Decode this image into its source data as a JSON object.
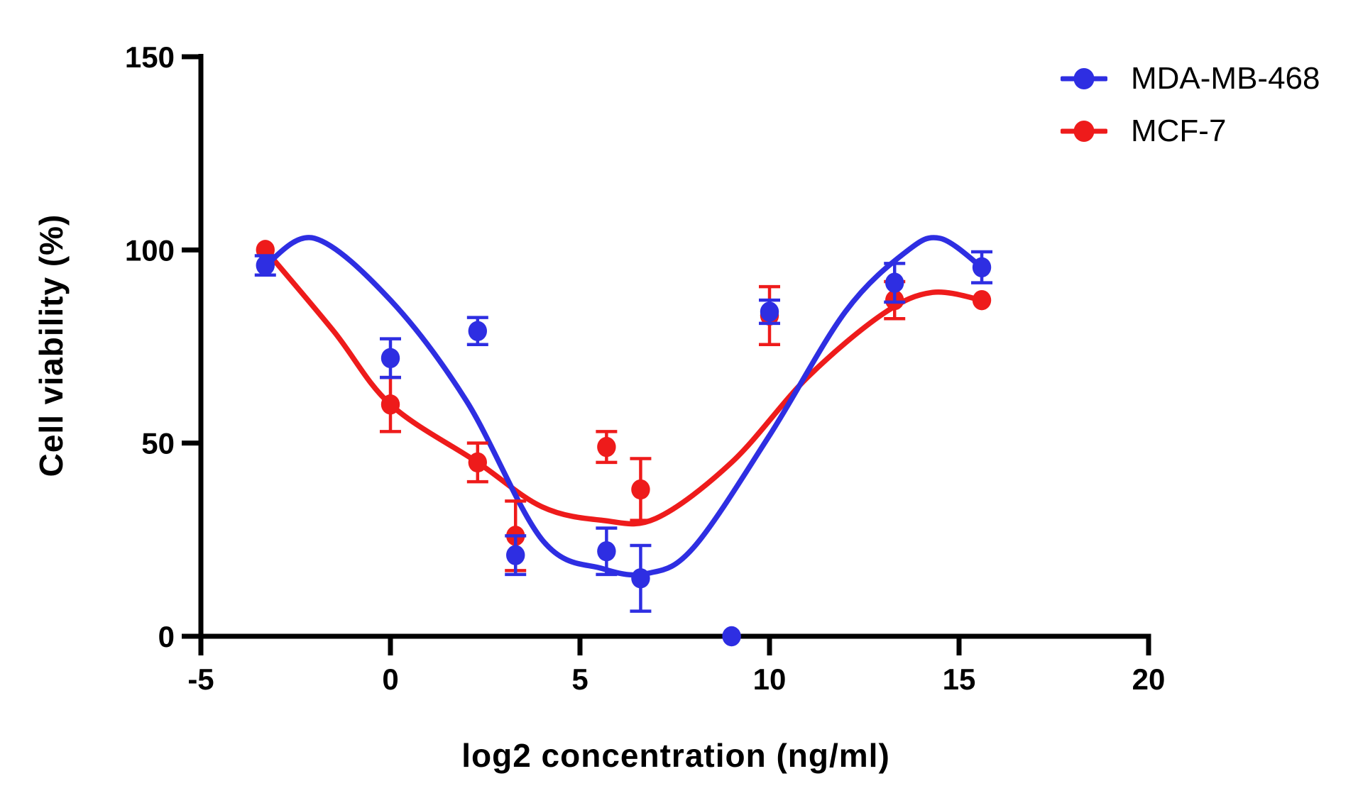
{
  "figure": {
    "background": "#ffffff"
  },
  "chart_data": {
    "type": "scatter",
    "title": "",
    "xlabel": "log2 concentration (ng/ml)",
    "ylabel": "Cell viability (%)",
    "xlim": [
      -5,
      20
    ],
    "ylim": [
      0,
      150
    ],
    "x_ticks": [
      -5,
      0,
      5,
      10,
      15,
      20
    ],
    "y_ticks": [
      0,
      50,
      100,
      150
    ],
    "grid": false,
    "legend_position": "top-right",
    "axis_color": "#000000",
    "series": [
      {
        "name": "MDA-MB-468",
        "color": "#2e2ee2",
        "marker": "circle",
        "points": [
          {
            "x": -3.3,
            "y": 96,
            "err": 2.5
          },
          {
            "x": 0,
            "y": 72,
            "err": 5
          },
          {
            "x": 2.3,
            "y": 79,
            "err": 3.5
          },
          {
            "x": 3.3,
            "y": 21,
            "err": 5
          },
          {
            "x": 5.7,
            "y": 22,
            "err": 6
          },
          {
            "x": 6.6,
            "y": 15,
            "err": 8.5
          },
          {
            "x": 9,
            "y": 0,
            "err": 0
          },
          {
            "x": 10,
            "y": 84,
            "err": 3
          },
          {
            "x": 13.3,
            "y": 91.5,
            "err": 5
          },
          {
            "x": 15.6,
            "y": 95.5,
            "err": 4
          }
        ],
        "fit_curve": [
          [
            -3.3,
            96
          ],
          [
            -2,
            103
          ],
          [
            0,
            87
          ],
          [
            2,
            61
          ],
          [
            4,
            25
          ],
          [
            5.6,
            17.5
          ],
          [
            6.8,
            16.3
          ],
          [
            8,
            23
          ],
          [
            10,
            52
          ],
          [
            12,
            84
          ],
          [
            13.6,
            99.5
          ],
          [
            14.5,
            103
          ],
          [
            15.6,
            95.5
          ]
        ]
      },
      {
        "name": "MCF-7",
        "color": "#ee1b1b",
        "marker": "circle",
        "points": [
          {
            "x": -3.3,
            "y": 100,
            "err": 0
          },
          {
            "x": 0,
            "y": 60,
            "err": 7
          },
          {
            "x": 2.3,
            "y": 45,
            "err": 5
          },
          {
            "x": 3.3,
            "y": 26,
            "err": 9
          },
          {
            "x": 5.7,
            "y": 49,
            "err": 4
          },
          {
            "x": 6.6,
            "y": 38,
            "err": 8
          },
          {
            "x": 10,
            "y": 83,
            "err": 7.5
          },
          {
            "x": 13.3,
            "y": 87,
            "err": 4.8
          },
          {
            "x": 15.6,
            "y": 87,
            "err": 0
          }
        ],
        "fit_curve": [
          [
            -3.3,
            100
          ],
          [
            -1.5,
            79
          ],
          [
            0,
            60
          ],
          [
            2.3,
            45
          ],
          [
            4,
            33.5
          ],
          [
            5.6,
            30
          ],
          [
            7,
            30.5
          ],
          [
            9,
            45
          ],
          [
            11,
            67
          ],
          [
            13,
            83.5
          ],
          [
            14.3,
            89
          ],
          [
            15.6,
            87
          ]
        ]
      }
    ]
  }
}
